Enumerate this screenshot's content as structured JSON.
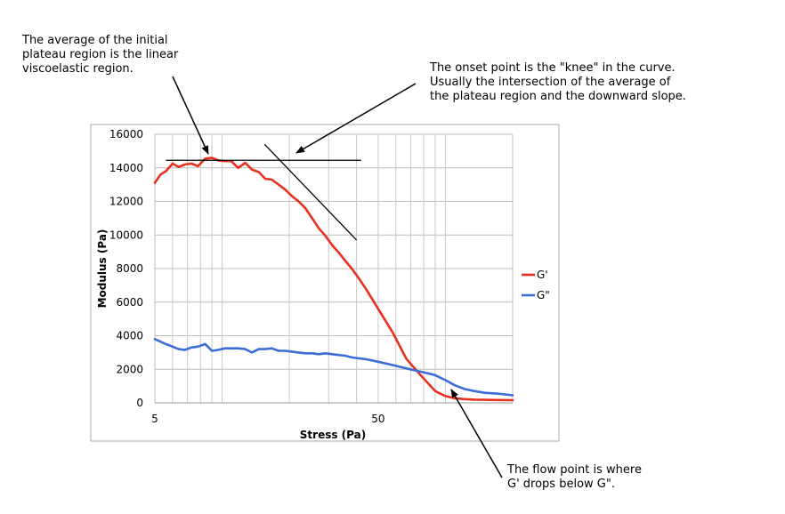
{
  "annotations": {
    "plateau": "The average of the initial\nplateau region is the linear\nviscoelastic region.",
    "onset": "The onset point is the \"knee\" in the curve.\nUsually the intersection of the average of\nthe plateau region and the downward slope.",
    "flow": "The flow point is where\nG' drops below G\"."
  },
  "chart_data": {
    "type": "line",
    "xlabel": "Stress (Pa)",
    "ylabel": "Modulus (Pa)",
    "xscale": "log",
    "xlim": [
      5,
      200
    ],
    "ylim": [
      0,
      16000
    ],
    "xticks": [
      "5",
      "50"
    ],
    "yticks": [
      "0",
      "2000",
      "4000",
      "6000",
      "8000",
      "10000",
      "12000",
      "14000",
      "16000"
    ],
    "grid": true,
    "legend_position": "right",
    "series": [
      {
        "name": "G'",
        "color": "#e8301e",
        "x": [
          5,
          5.3,
          5.6,
          6,
          6.4,
          6.8,
          7.3,
          7.8,
          8.4,
          9,
          9.6,
          10.3,
          11,
          11.8,
          12.7,
          13.6,
          14.6,
          15.6,
          16.7,
          17.9,
          19.2,
          20.6,
          22,
          23.6,
          25.3,
          27.1,
          29,
          31.1,
          33.3,
          35.7,
          38.3,
          41,
          44,
          50,
          58,
          67,
          78,
          90,
          100,
          110,
          122,
          135,
          150,
          170,
          200
        ],
        "values": [
          13100,
          13600,
          13800,
          14250,
          14050,
          14200,
          14250,
          14100,
          14550,
          14600,
          14450,
          14400,
          14400,
          14000,
          14300,
          13900,
          13750,
          13350,
          13300,
          13000,
          12700,
          12300,
          12000,
          11600,
          11000,
          10400,
          9950,
          9400,
          8950,
          8450,
          7950,
          7400,
          6800,
          5600,
          4200,
          2600,
          1600,
          700,
          400,
          270,
          220,
          190,
          180,
          170,
          160
        ]
      },
      {
        "name": "G\"",
        "color": "#3c6cd6",
        "x": [
          5,
          5.6,
          6,
          6.4,
          6.8,
          7.3,
          7.8,
          8.4,
          9,
          9.6,
          10.3,
          11,
          11.8,
          12.7,
          13.6,
          14.6,
          15.6,
          16.7,
          17.9,
          19.2,
          20.6,
          22,
          23.6,
          25.3,
          27.1,
          29,
          31.1,
          33.3,
          35.7,
          38.3,
          41,
          44,
          50,
          58,
          67,
          78,
          90,
          100,
          110,
          122,
          135,
          150,
          170,
          200
        ],
        "values": [
          3800,
          3500,
          3350,
          3200,
          3150,
          3300,
          3350,
          3500,
          3100,
          3150,
          3250,
          3250,
          3250,
          3200,
          3000,
          3200,
          3200,
          3250,
          3100,
          3100,
          3050,
          3000,
          2950,
          2950,
          2900,
          2950,
          2900,
          2850,
          2800,
          2700,
          2650,
          2600,
          2450,
          2250,
          2050,
          1850,
          1650,
          1350,
          1050,
          820,
          700,
          600,
          550,
          450
        ]
      }
    ],
    "reference_lines": [
      {
        "kind": "plateau-average",
        "x": [
          5.6,
          42
        ],
        "y": [
          14450,
          14450
        ]
      },
      {
        "kind": "downward-slope-tangent",
        "x": [
          15.5,
          40
        ],
        "y": [
          15400,
          9700
        ]
      }
    ]
  }
}
